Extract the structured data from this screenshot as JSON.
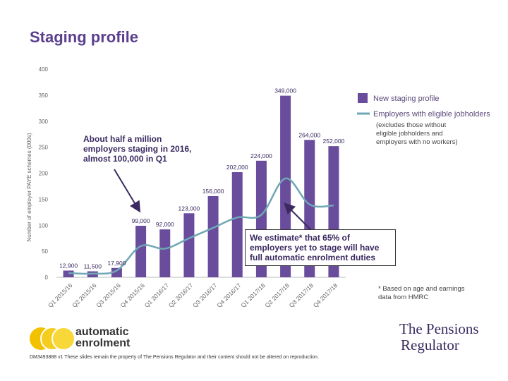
{
  "slide": {
    "title": "Staging profile",
    "callout_left": [
      "About half a million",
      "employers staging in 2016,",
      "almost 100,000 in Q1"
    ],
    "estimate_text": [
      "We estimate* that 65% of",
      "employers yet to stage will have",
      "full automatic enrolment duties"
    ],
    "legend_note": [
      "(excludes those without",
      "eligible jobholders and",
      "employers with no workers)"
    ],
    "footnote": [
      "* Based on age and earnings",
      "data from HMRC"
    ],
    "footer": "DM3493888 v1 These slides remain the property of The Pensions Regulator and their content should not be altered on reproduction.",
    "logo_ae": [
      "automatic",
      "enrolment"
    ],
    "logo_tpr": [
      "The Pensions",
      "Regulator"
    ]
  },
  "chart_data": {
    "type": "bar",
    "ylabel": "Number of employer PAYE schemes (000s)",
    "ylim": [
      0,
      400
    ],
    "yticks": [
      0,
      50,
      100,
      150,
      200,
      250,
      300,
      350,
      400
    ],
    "categories": [
      "Q1 2015/16",
      "Q2 2015/16",
      "Q3 2015/16",
      "Q4 2015/16",
      "Q1 2016/17",
      "Q2 2016/17",
      "Q3 2016/17",
      "Q4 2016/17",
      "Q1 2017/18",
      "Q2 2017/18",
      "Q3 2017/18",
      "Q4 2017/18"
    ],
    "series": [
      {
        "name": "New staging profile",
        "type": "bar",
        "color": "#6a4c9c",
        "values": [
          12.9,
          11.5,
          17.9,
          99,
          92,
          123,
          156,
          202,
          224,
          349,
          264,
          252
        ],
        "labels": [
          "12,900",
          "11,500",
          "17,900",
          "99,000",
          "92,000",
          "123,000",
          "156,000",
          "202,000",
          "224,000",
          "349,000",
          "264,000",
          "252,000"
        ]
      },
      {
        "name": "Employers with eligible jobholders",
        "type": "line",
        "color": "#6fa7b5",
        "values": [
          8,
          7,
          13,
          60,
          55,
          75,
          95,
          115,
          120,
          190,
          140,
          138
        ]
      }
    ],
    "legend": "right"
  }
}
